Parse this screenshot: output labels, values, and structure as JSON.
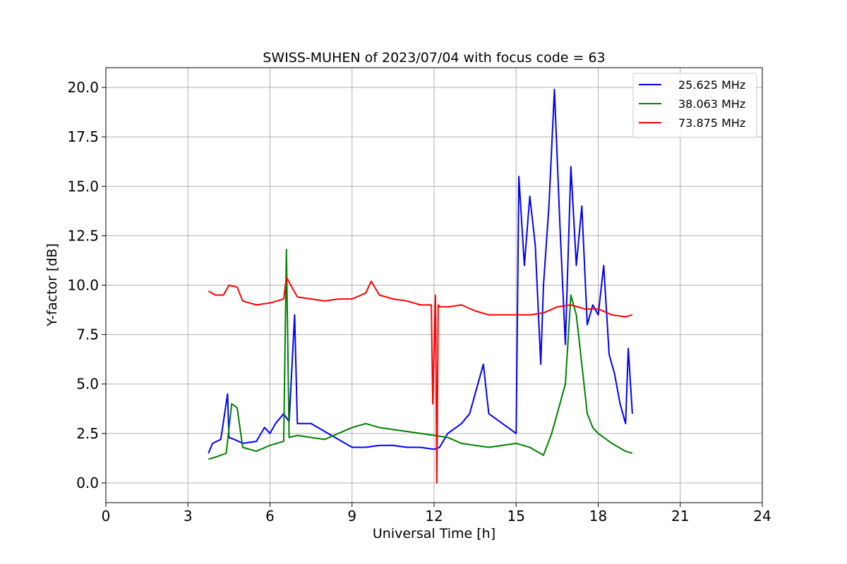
{
  "chart_data": {
    "type": "line",
    "title": "SWISS-MUHEN of 2023/07/04 with focus code = 63",
    "xlabel": "Universal Time [h]",
    "ylabel": "Y-factor [dB]",
    "xlim": [
      0,
      24
    ],
    "ylim": [
      -1.0,
      21.0
    ],
    "xticks": [
      0,
      3,
      6,
      9,
      12,
      15,
      18,
      21,
      24
    ],
    "xtick_labels": [
      "0",
      "3",
      "6",
      "9",
      "12",
      "15",
      "18",
      "21",
      "24"
    ],
    "yticks": [
      0,
      2.5,
      5,
      7.5,
      10,
      12.5,
      15,
      17.5,
      20
    ],
    "ytick_labels": [
      "0.0",
      "2.5",
      "5.0",
      "7.5",
      "10.0",
      "12.5",
      "15.0",
      "17.5",
      "20.0"
    ],
    "grid": true,
    "legend_position": "top-right",
    "series": [
      {
        "name": "25.625 MHz",
        "color": "#0000ff",
        "x": [
          3.75,
          3.9,
          4.2,
          4.45,
          4.5,
          4.7,
          5.0,
          5.5,
          5.8,
          6.0,
          6.2,
          6.5,
          6.7,
          6.9,
          7.0,
          7.2,
          7.5,
          8.0,
          8.5,
          9.0,
          9.5,
          10.0,
          10.5,
          11.0,
          11.5,
          12.0,
          12.2,
          12.5,
          13.0,
          13.3,
          13.5,
          13.8,
          14.0,
          14.5,
          15.0,
          15.1,
          15.3,
          15.5,
          15.7,
          15.9,
          16.0,
          16.2,
          16.4,
          16.6,
          16.8,
          17.0,
          17.2,
          17.4,
          17.6,
          17.8,
          18.0,
          18.2,
          18.4,
          18.6,
          18.8,
          19.0,
          19.1,
          19.25
        ],
        "y": [
          1.5,
          2.0,
          2.2,
          4.5,
          2.3,
          2.2,
          2.0,
          2.1,
          2.8,
          2.5,
          3.0,
          3.5,
          3.1,
          8.5,
          3.0,
          3.0,
          3.0,
          2.6,
          2.2,
          1.8,
          1.8,
          1.9,
          1.9,
          1.8,
          1.8,
          1.7,
          1.8,
          2.5,
          3.0,
          3.5,
          4.5,
          6.0,
          3.5,
          3.0,
          2.5,
          15.5,
          11.0,
          14.5,
          12.0,
          6.0,
          10.0,
          14.0,
          19.9,
          13.0,
          7.0,
          16.0,
          11.0,
          14.0,
          8.0,
          9.0,
          8.5,
          11.0,
          6.5,
          5.5,
          4.0,
          3.0,
          6.8,
          3.5
        ]
      },
      {
        "name": "38.063 MHz",
        "color": "#008000",
        "x": [
          3.75,
          4.0,
          4.4,
          4.6,
          4.8,
          5.0,
          5.5,
          6.0,
          6.5,
          6.6,
          6.7,
          7.0,
          7.5,
          8.0,
          8.5,
          9.0,
          9.5,
          10.0,
          10.5,
          11.0,
          11.5,
          12.0,
          12.5,
          13.0,
          13.5,
          14.0,
          14.5,
          15.0,
          15.5,
          16.0,
          16.3,
          16.5,
          16.8,
          17.0,
          17.2,
          17.4,
          17.6,
          17.8,
          18.0,
          18.5,
          19.0,
          19.25
        ],
        "y": [
          1.2,
          1.3,
          1.5,
          4.0,
          3.8,
          1.8,
          1.6,
          1.9,
          2.1,
          11.8,
          2.3,
          2.4,
          2.3,
          2.2,
          2.5,
          2.8,
          3.0,
          2.8,
          2.7,
          2.6,
          2.5,
          2.4,
          2.3,
          2.0,
          1.9,
          1.8,
          1.9,
          2.0,
          1.8,
          1.4,
          2.5,
          3.5,
          5.0,
          9.5,
          8.5,
          6.0,
          3.5,
          2.8,
          2.5,
          2.0,
          1.6,
          1.5
        ]
      },
      {
        "name": "73.875 MHz",
        "color": "#ff0000",
        "x": [
          3.75,
          4.0,
          4.3,
          4.5,
          4.8,
          5.0,
          5.5,
          6.0,
          6.5,
          6.6,
          7.0,
          7.5,
          8.0,
          8.5,
          9.0,
          9.5,
          9.7,
          10.0,
          10.5,
          11.0,
          11.5,
          11.9,
          11.95,
          12.05,
          12.1,
          12.15,
          12.2,
          12.5,
          13.0,
          13.5,
          14.0,
          14.5,
          15.0,
          15.5,
          16.0,
          16.5,
          17.0,
          17.5,
          18.0,
          18.5,
          19.0,
          19.25
        ],
        "y": [
          9.7,
          9.5,
          9.5,
          10.0,
          9.9,
          9.2,
          9.0,
          9.1,
          9.3,
          10.4,
          9.4,
          9.3,
          9.2,
          9.3,
          9.3,
          9.6,
          10.2,
          9.5,
          9.3,
          9.2,
          9.0,
          9.0,
          4.0,
          9.5,
          0.0,
          9.0,
          8.9,
          8.9,
          9.0,
          8.7,
          8.5,
          8.5,
          8.5,
          8.5,
          8.6,
          8.9,
          9.0,
          8.8,
          8.8,
          8.5,
          8.4,
          8.5
        ]
      }
    ]
  }
}
